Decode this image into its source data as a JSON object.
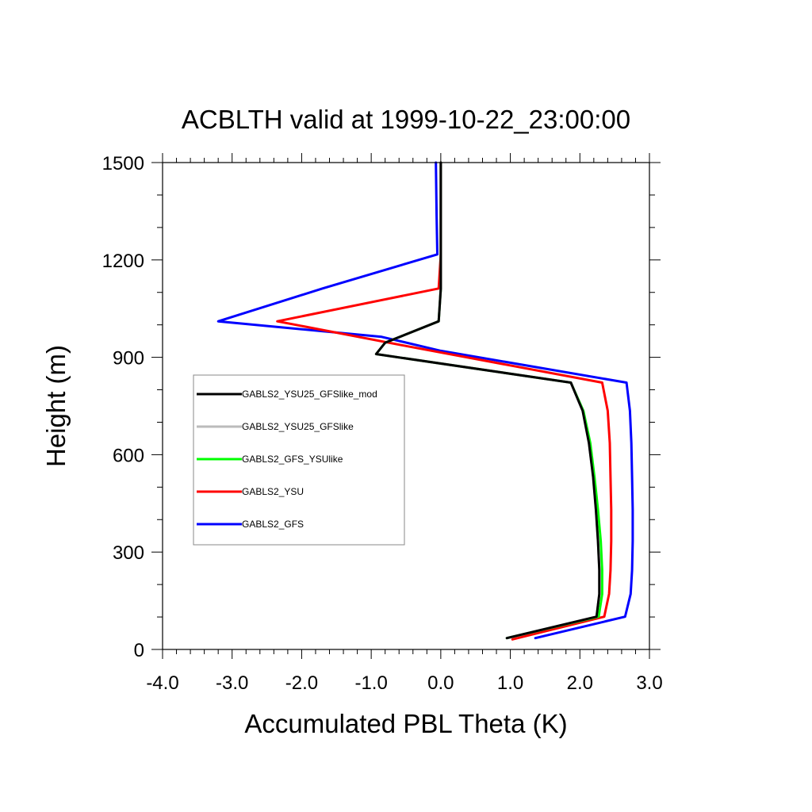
{
  "chart_data": {
    "type": "line",
    "title": "ACBLTH valid at 1999-10-22_23:00:00",
    "xlabel": "Accumulated PBL Theta (K)",
    "ylabel": "Height (m)",
    "xlim": [
      -4.0,
      3.0
    ],
    "ylim": [
      0,
      1500
    ],
    "x_ticks": [
      -4.0,
      -3.0,
      -2.0,
      -1.0,
      0.0,
      1.0,
      2.0,
      3.0
    ],
    "x_tick_labels": [
      "-4.0",
      "-3.0",
      "-2.0",
      "-1.0",
      "0.0",
      "1.0",
      "2.0",
      "3.0"
    ],
    "y_ticks": [
      0,
      300,
      600,
      900,
      1200,
      1500
    ],
    "y_tick_labels": [
      "0",
      "300",
      "600",
      "900",
      "1200",
      "1500"
    ],
    "grid": false,
    "legend_position": "left-middle",
    "series": [
      {
        "name": "GABLS2_GFS",
        "color": "#0000ff",
        "points": [
          [
            1.36,
            35
          ],
          [
            2.65,
            101
          ],
          [
            2.73,
            171
          ],
          [
            2.75,
            244
          ],
          [
            2.76,
            334
          ],
          [
            2.76,
            430
          ],
          [
            2.75,
            531
          ],
          [
            2.74,
            636
          ],
          [
            2.72,
            735
          ],
          [
            2.67,
            822
          ],
          [
            0.0,
            920
          ],
          [
            -0.85,
            963
          ],
          [
            -3.2,
            1011
          ],
          [
            -1.7,
            1112
          ],
          [
            -0.05,
            1217
          ],
          [
            -0.06,
            1336
          ],
          [
            -0.07,
            1500
          ]
        ]
      },
      {
        "name": "GABLS2_YSU",
        "color": "#ff0000",
        "points": [
          [
            1.03,
            31
          ],
          [
            2.35,
            101
          ],
          [
            2.42,
            171
          ],
          [
            2.44,
            244
          ],
          [
            2.45,
            334
          ],
          [
            2.45,
            430
          ],
          [
            2.44,
            531
          ],
          [
            2.43,
            636
          ],
          [
            2.4,
            735
          ],
          [
            2.32,
            822
          ],
          [
            -0.5,
            935
          ],
          [
            -2.35,
            1011
          ],
          [
            -0.03,
            1112
          ],
          [
            0.0,
            1217
          ],
          [
            0.0,
            1336
          ],
          [
            0.0,
            1500
          ]
        ]
      },
      {
        "name": "GABLS2_GFS_YSUlike",
        "color": "#00ff00",
        "points": [
          [
            0.95,
            35
          ],
          [
            2.27,
            101
          ],
          [
            2.32,
            171
          ],
          [
            2.32,
            244
          ],
          [
            2.3,
            334
          ],
          [
            2.26,
            430
          ],
          [
            2.21,
            531
          ],
          [
            2.15,
            636
          ],
          [
            2.05,
            735
          ],
          [
            1.87,
            822
          ],
          [
            -0.93,
            910
          ],
          [
            -0.8,
            945
          ],
          [
            -0.03,
            1011
          ],
          [
            0.0,
            1112
          ],
          [
            0.0,
            1217
          ],
          [
            0.0,
            1336
          ],
          [
            0.0,
            1500
          ]
        ]
      },
      {
        "name": "GABLS2_YSU25_GFSlike",
        "color": "#bbbbbb",
        "points": [
          [
            0.95,
            35
          ],
          [
            2.24,
            101
          ],
          [
            2.28,
            171
          ],
          [
            2.28,
            244
          ],
          [
            2.26,
            334
          ],
          [
            2.23,
            430
          ],
          [
            2.19,
            531
          ],
          [
            2.13,
            636
          ],
          [
            2.04,
            735
          ],
          [
            1.87,
            822
          ],
          [
            -0.93,
            910
          ],
          [
            -0.8,
            945
          ],
          [
            -0.03,
            1011
          ],
          [
            0.0,
            1112
          ],
          [
            0.0,
            1217
          ],
          [
            0.0,
            1336
          ],
          [
            0.0,
            1500
          ]
        ]
      },
      {
        "name": "GABLS2_YSU25_GFSlike_mod",
        "color": "#000000",
        "points": [
          [
            0.95,
            35
          ],
          [
            2.24,
            101
          ],
          [
            2.28,
            171
          ],
          [
            2.28,
            244
          ],
          [
            2.26,
            334
          ],
          [
            2.23,
            430
          ],
          [
            2.19,
            531
          ],
          [
            2.13,
            636
          ],
          [
            2.04,
            735
          ],
          [
            1.87,
            822
          ],
          [
            -0.93,
            910
          ],
          [
            -0.8,
            945
          ],
          [
            -0.03,
            1011
          ],
          [
            0.0,
            1112
          ],
          [
            0.0,
            1217
          ],
          [
            0.0,
            1336
          ],
          [
            0.0,
            1500
          ]
        ]
      }
    ],
    "legend_order": [
      "GABLS2_YSU25_GFSlike_mod",
      "GABLS2_YSU25_GFSlike",
      "GABLS2_GFS_YSUlike",
      "GABLS2_YSU",
      "GABLS2_GFS"
    ]
  }
}
